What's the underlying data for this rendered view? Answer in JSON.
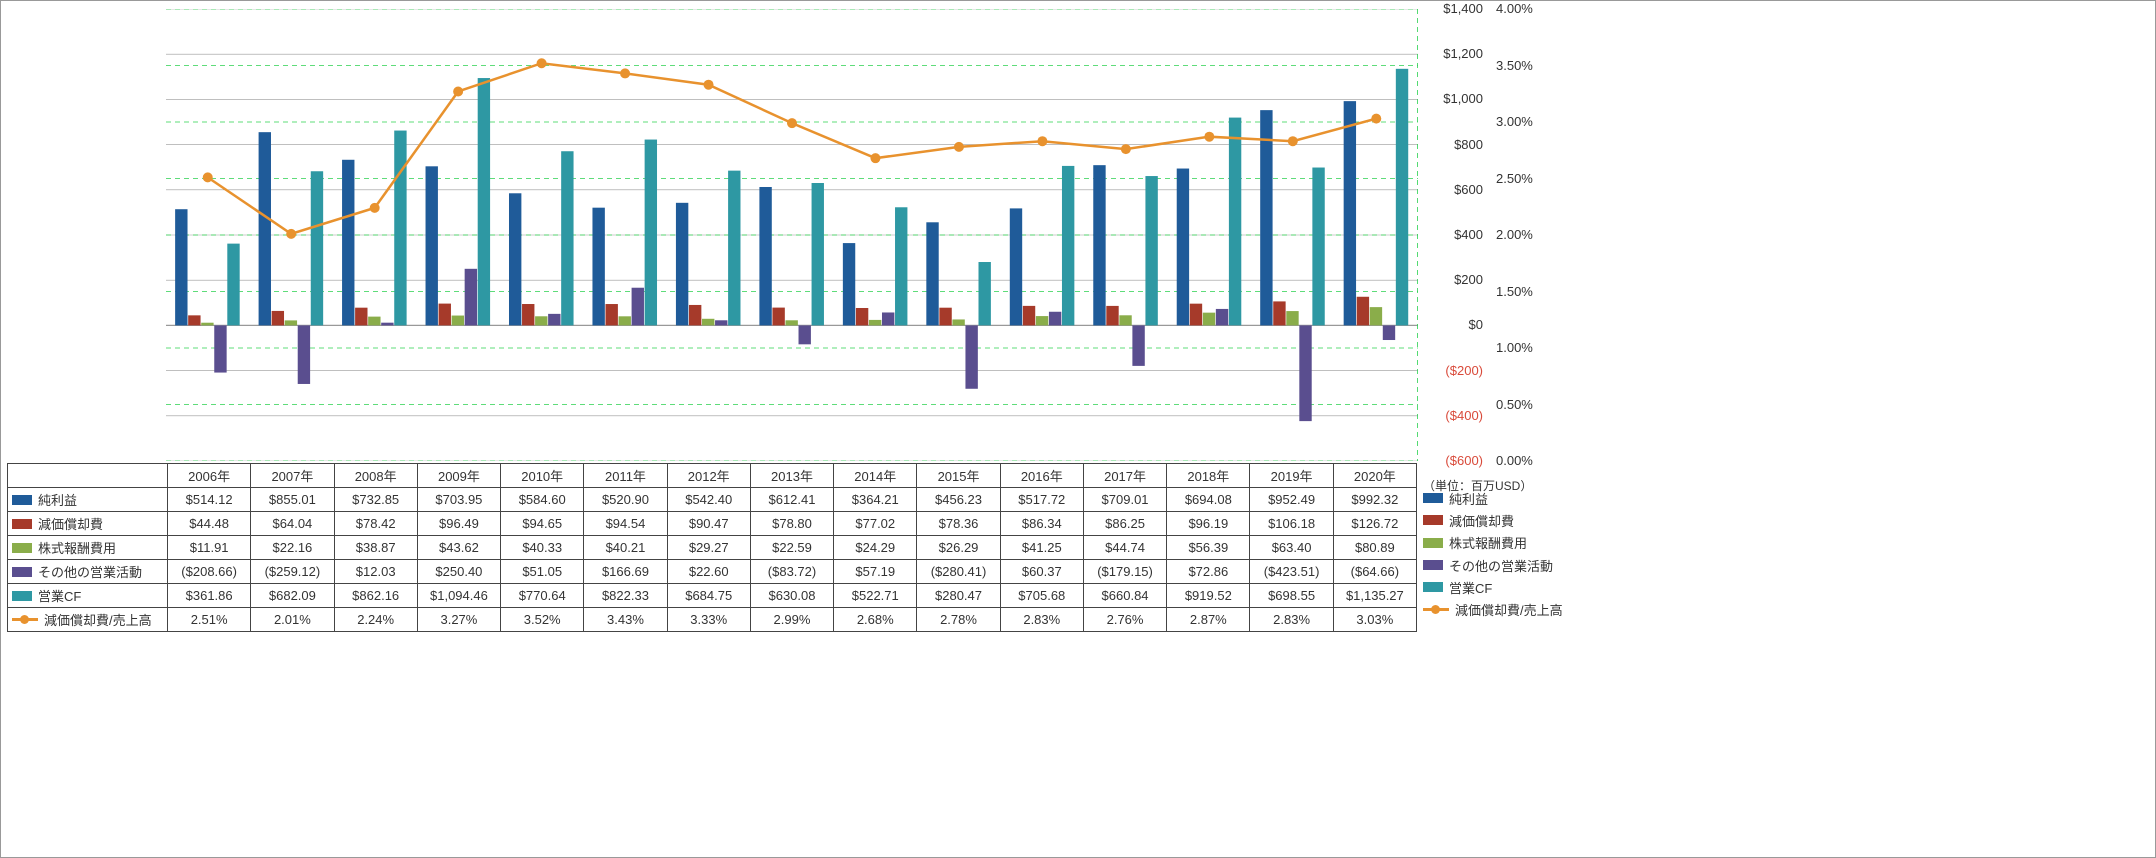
{
  "unit_note": "（単位：百万USD）",
  "chart": {
    "type": "bar+line",
    "categories": [
      "2006年",
      "2007年",
      "2008年",
      "2009年",
      "2010年",
      "2011年",
      "2012年",
      "2013年",
      "2014年",
      "2015年",
      "2016年",
      "2017年",
      "2018年",
      "2019年",
      "2020年"
    ],
    "y_left": {
      "min": -600,
      "max": 1400,
      "step": 200
    },
    "y_right_pct": {
      "min": 0,
      "max": 4.0,
      "step": 0.5
    },
    "gridline_color": "#999999",
    "pct_gridline_color": "#2bd14f",
    "background": "#ffffff",
    "series": [
      {
        "key": "net_income",
        "label": "純利益",
        "style": "bar",
        "color": "#1f5b99",
        "values": [
          514.12,
          855.01,
          732.85,
          703.95,
          584.6,
          520.9,
          542.4,
          612.41,
          364.21,
          456.23,
          517.72,
          709.01,
          694.08,
          952.49,
          992.32
        ]
      },
      {
        "key": "depreciation",
        "label": "減価償却費",
        "style": "bar",
        "color": "#a63a2a",
        "values": [
          44.48,
          64.04,
          78.42,
          96.49,
          94.65,
          94.54,
          90.47,
          78.8,
          77.02,
          78.36,
          86.34,
          86.25,
          96.19,
          106.18,
          126.72
        ]
      },
      {
        "key": "stock_comp",
        "label": "株式報酬費用",
        "style": "bar",
        "color": "#8aad4a",
        "values": [
          11.91,
          22.16,
          38.87,
          43.62,
          40.33,
          40.21,
          29.27,
          22.59,
          24.29,
          26.29,
          41.25,
          44.74,
          56.39,
          63.4,
          80.89
        ]
      },
      {
        "key": "other_op",
        "label": "その他の営業活動",
        "style": "bar",
        "color": "#5a4e8f",
        "values": [
          -208.66,
          -259.12,
          12.03,
          250.4,
          51.05,
          166.69,
          22.6,
          -83.72,
          57.19,
          -280.41,
          60.37,
          -179.15,
          72.86,
          -423.51,
          -64.66
        ]
      },
      {
        "key": "op_cf",
        "label": "営業CF",
        "style": "bar",
        "color": "#2e98a3",
        "values": [
          361.86,
          682.09,
          862.16,
          1094.46,
          770.64,
          822.33,
          684.75,
          630.08,
          522.71,
          280.47,
          705.68,
          660.84,
          919.52,
          698.55,
          1135.27
        ]
      },
      {
        "key": "dep_ratio",
        "label": "減価償却費/売上高",
        "style": "line",
        "color": "#e8922e",
        "values_pct": [
          2.51,
          2.01,
          2.24,
          3.27,
          3.52,
          3.43,
          3.33,
          2.99,
          2.68,
          2.78,
          2.83,
          2.76,
          2.87,
          2.83,
          3.03
        ]
      }
    ]
  },
  "table": {
    "row_labels": [
      "純利益",
      "減価償却費",
      "株式報酬費用",
      "その他の営業活動",
      "営業CF",
      "減価償却費/売上高"
    ],
    "cells": [
      [
        "$514.12",
        "$855.01",
        "$732.85",
        "$703.95",
        "$584.60",
        "$520.90",
        "$542.40",
        "$612.41",
        "$364.21",
        "$456.23",
        "$517.72",
        "$709.01",
        "$694.08",
        "$952.49",
        "$992.32"
      ],
      [
        "$44.48",
        "$64.04",
        "$78.42",
        "$96.49",
        "$94.65",
        "$94.54",
        "$90.47",
        "$78.80",
        "$77.02",
        "$78.36",
        "$86.34",
        "$86.25",
        "$96.19",
        "$106.18",
        "$126.72"
      ],
      [
        "$11.91",
        "$22.16",
        "$38.87",
        "$43.62",
        "$40.33",
        "$40.21",
        "$29.27",
        "$22.59",
        "$24.29",
        "$26.29",
        "$41.25",
        "$44.74",
        "$56.39",
        "$63.40",
        "$80.89"
      ],
      [
        "($208.66)",
        "($259.12)",
        "$12.03",
        "$250.40",
        "$51.05",
        "$166.69",
        "$22.60",
        "($83.72)",
        "$57.19",
        "($280.41)",
        "$60.37",
        "($179.15)",
        "$72.86",
        "($423.51)",
        "($64.66)"
      ],
      [
        "$361.86",
        "$682.09",
        "$862.16",
        "$1,094.46",
        "$770.64",
        "$822.33",
        "$684.75",
        "$630.08",
        "$522.71",
        "$280.47",
        "$705.68",
        "$660.84",
        "$919.52",
        "$698.55",
        "$1,135.27"
      ],
      [
        "2.51%",
        "2.01%",
        "2.24%",
        "3.27%",
        "3.52%",
        "3.43%",
        "3.33%",
        "2.99%",
        "2.68%",
        "2.78%",
        "2.83%",
        "2.76%",
        "2.87%",
        "2.83%",
        "3.03%"
      ]
    ]
  },
  "y_right_labels_text": [
    "$1,400",
    "$1,200",
    "$1,000",
    "$800",
    "$600",
    "$400",
    "$200",
    "$0",
    "($200)",
    "($400)",
    "($600)"
  ],
  "y_right_label_color_neg": "#d94a3a",
  "y_pct_labels_text": [
    "4.00%",
    "3.50%",
    "3.00%",
    "2.50%",
    "2.00%",
    "1.50%",
    "1.00%",
    "0.50%",
    "0.00%"
  ]
}
